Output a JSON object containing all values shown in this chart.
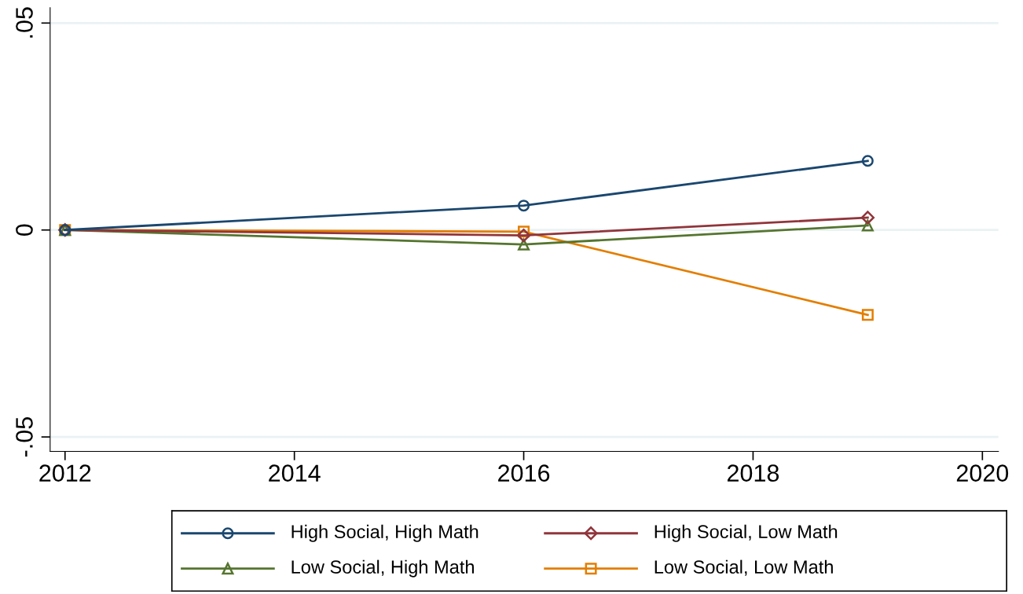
{
  "chart_data": {
    "type": "line",
    "x": [
      2012,
      2016,
      2019
    ],
    "series": [
      {
        "name": "High Social, High Math",
        "color": "#1a476f",
        "marker": "circle",
        "values": [
          0,
          0.0059,
          0.0167
        ]
      },
      {
        "name": "High Social, Low Math",
        "color": "#90353b",
        "marker": "diamond",
        "values": [
          0,
          -0.0013,
          0.003
        ]
      },
      {
        "name": "Low Social, High Math",
        "color": "#55752f",
        "marker": "triangle",
        "values": [
          0,
          -0.0035,
          0.0011
        ]
      },
      {
        "name": "Low Social, Low Math",
        "color": "#e37e00",
        "marker": "square",
        "values": [
          0,
          -0.0004,
          -0.0205
        ]
      }
    ],
    "xlim": [
      2011.87,
      2020.14
    ],
    "xticks": [
      2012,
      2014,
      2016,
      2018,
      2020
    ],
    "ylim": [
      -0.0535,
      0.0537
    ],
    "yticks": [
      {
        "value": -0.05,
        "label": "-.05"
      },
      0,
      {
        "value": 0.05,
        "label": ".05"
      }
    ],
    "grid": "y",
    "legend": "bottom",
    "line_style": "solid"
  }
}
